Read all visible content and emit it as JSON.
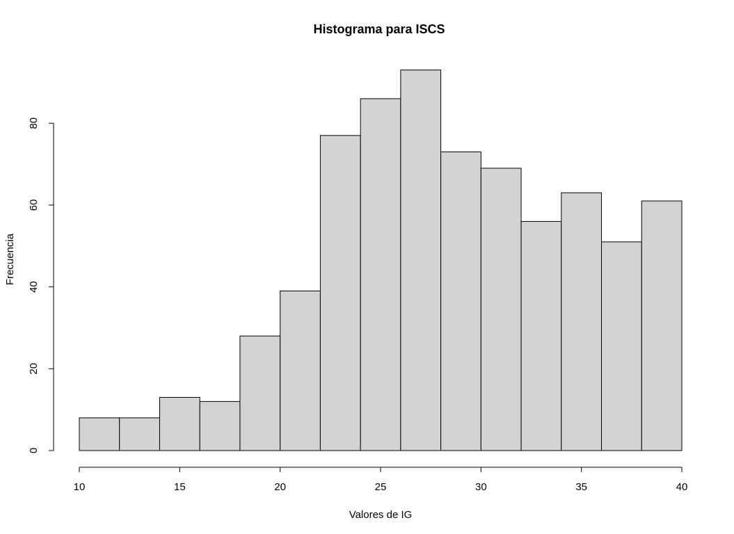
{
  "chart_data": {
    "type": "bar",
    "title": "Histograma para ISCS",
    "xlabel": "Valores de IG",
    "ylabel": "Frecuencia",
    "bins": [
      {
        "start": 10,
        "end": 12,
        "count": 8
      },
      {
        "start": 12,
        "end": 14,
        "count": 8
      },
      {
        "start": 14,
        "end": 16,
        "count": 13
      },
      {
        "start": 16,
        "end": 18,
        "count": 12
      },
      {
        "start": 18,
        "end": 20,
        "count": 28
      },
      {
        "start": 20,
        "end": 22,
        "count": 39
      },
      {
        "start": 22,
        "end": 24,
        "count": 77
      },
      {
        "start": 24,
        "end": 26,
        "count": 86
      },
      {
        "start": 26,
        "end": 28,
        "count": 93
      },
      {
        "start": 28,
        "end": 30,
        "count": 73
      },
      {
        "start": 30,
        "end": 32,
        "count": 69
      },
      {
        "start": 32,
        "end": 34,
        "count": 56
      },
      {
        "start": 34,
        "end": 36,
        "count": 63
      },
      {
        "start": 36,
        "end": 38,
        "count": 51
      },
      {
        "start": 38,
        "end": 40,
        "count": 61
      }
    ],
    "xlim": [
      10,
      40
    ],
    "ylim": [
      0,
      93
    ],
    "x_ticks": [
      "10",
      "15",
      "20",
      "25",
      "30",
      "35",
      "40"
    ],
    "y_ticks": [
      "0",
      "20",
      "40",
      "60",
      "80"
    ],
    "bar_fill": "#d3d3d3",
    "bar_stroke": "#000000",
    "grid": false
  }
}
